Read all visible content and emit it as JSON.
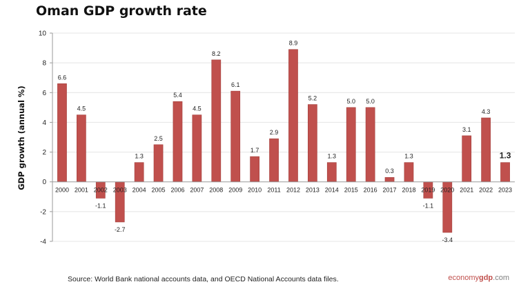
{
  "title": "Oman GDP growth rate",
  "source": "Source:  World Bank national accounts data, and OECD National Accounts data files.",
  "brand": {
    "part1": "economy",
    "part2": "gdp",
    "part3": ".com"
  },
  "chart_data": {
    "type": "bar",
    "title": "Oman GDP growth rate",
    "xlabel": "",
    "ylabel": "GDP growth (annual %)",
    "ylim": [
      -4,
      10
    ],
    "yticks": [
      -4,
      -2,
      0,
      2,
      4,
      6,
      8,
      10
    ],
    "grid": true,
    "bar_color": "#c0504d",
    "categories": [
      "2000",
      "2001",
      "2002",
      "2003",
      "2004",
      "2005",
      "2006",
      "2007",
      "2008",
      "2009",
      "2010",
      "2011",
      "2012",
      "2013",
      "2014",
      "2015",
      "2016",
      "2017",
      "2018",
      "2019",
      "2020",
      "2021",
      "2022",
      "2023"
    ],
    "values": [
      6.6,
      4.5,
      -1.1,
      -2.7,
      1.3,
      2.5,
      5.4,
      4.5,
      8.2,
      6.1,
      1.7,
      2.9,
      8.9,
      5.2,
      1.3,
      5.0,
      5.0,
      0.3,
      1.3,
      -1.1,
      -3.4,
      3.1,
      4.3,
      1.3
    ],
    "labels": [
      "6.6",
      "4.5",
      "-1.1",
      "-2.7",
      "1.3",
      "2.5",
      "5.4",
      "4.5",
      "8.2",
      "6.1",
      "1.7",
      "2.9",
      "8.9",
      "5.2",
      "1.3",
      "5.0",
      "5.0",
      "0.3",
      "1.3",
      "-1.1",
      "-3.4",
      "3.1",
      "4.3",
      "1.3"
    ]
  }
}
